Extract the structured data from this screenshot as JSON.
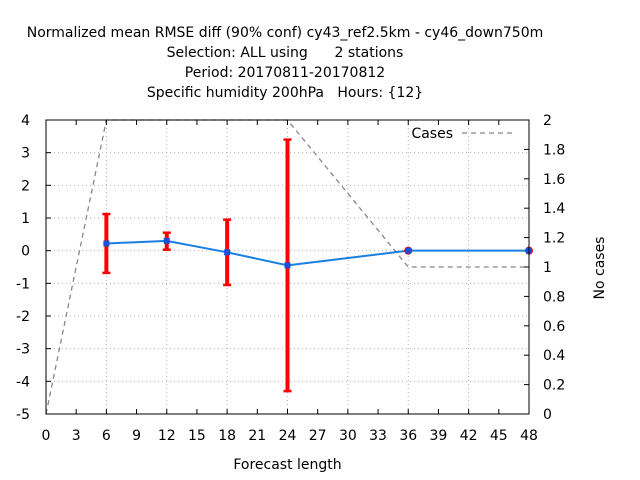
{
  "chart_data": {
    "type": "line",
    "title_lines": [
      "Normalized mean RMSE diff (90% conf) cy43_ref2.5km - cy46_down750m",
      "Selection: ALL using      2 stations",
      "Period: 20170811-20170812",
      "Specific humidity 200hPa   Hours: {12}"
    ],
    "xlabel": "Forecast length",
    "ylabel_right": "No cases",
    "xlim": [
      0,
      48
    ],
    "xticks": [
      0,
      3,
      6,
      9,
      12,
      15,
      18,
      21,
      24,
      27,
      30,
      33,
      36,
      39,
      42,
      45,
      48
    ],
    "ylim_left": [
      -5,
      4
    ],
    "yticks_left": [
      -5,
      -4,
      -3,
      -2,
      -1,
      0,
      1,
      2,
      3,
      4
    ],
    "ylim_right": [
      0,
      2
    ],
    "yticks_right": [
      "0",
      "0.2",
      "0.4",
      "0.6",
      "0.8",
      "1",
      "1.2",
      "1.4",
      "1.6",
      "1.8",
      "2"
    ],
    "grid": true,
    "series": [
      {
        "color": "#1a7fe0",
        "x": [
          6,
          12,
          18,
          24,
          36,
          48
        ],
        "y": [
          0.22,
          0.3,
          -0.05,
          -0.45,
          0.0,
          0.0
        ],
        "err_low": [
          -0.68,
          0.03,
          -1.05,
          -4.3,
          0.0,
          0.0
        ],
        "err_high": [
          1.12,
          0.55,
          0.95,
          3.4,
          0.0,
          0.0
        ]
      },
      {
        "name": "Cases",
        "color": "#888888",
        "axis": "right",
        "x": [
          0,
          6,
          12,
          18,
          24,
          36,
          48
        ],
        "y": [
          0,
          2,
          2,
          2,
          2,
          1,
          1
        ]
      }
    ],
    "errorbar_color": "#ff0000",
    "marker_color": "#1a4fd6",
    "legend": {
      "entries": [
        "Cases"
      ],
      "position": "top-right"
    }
  }
}
